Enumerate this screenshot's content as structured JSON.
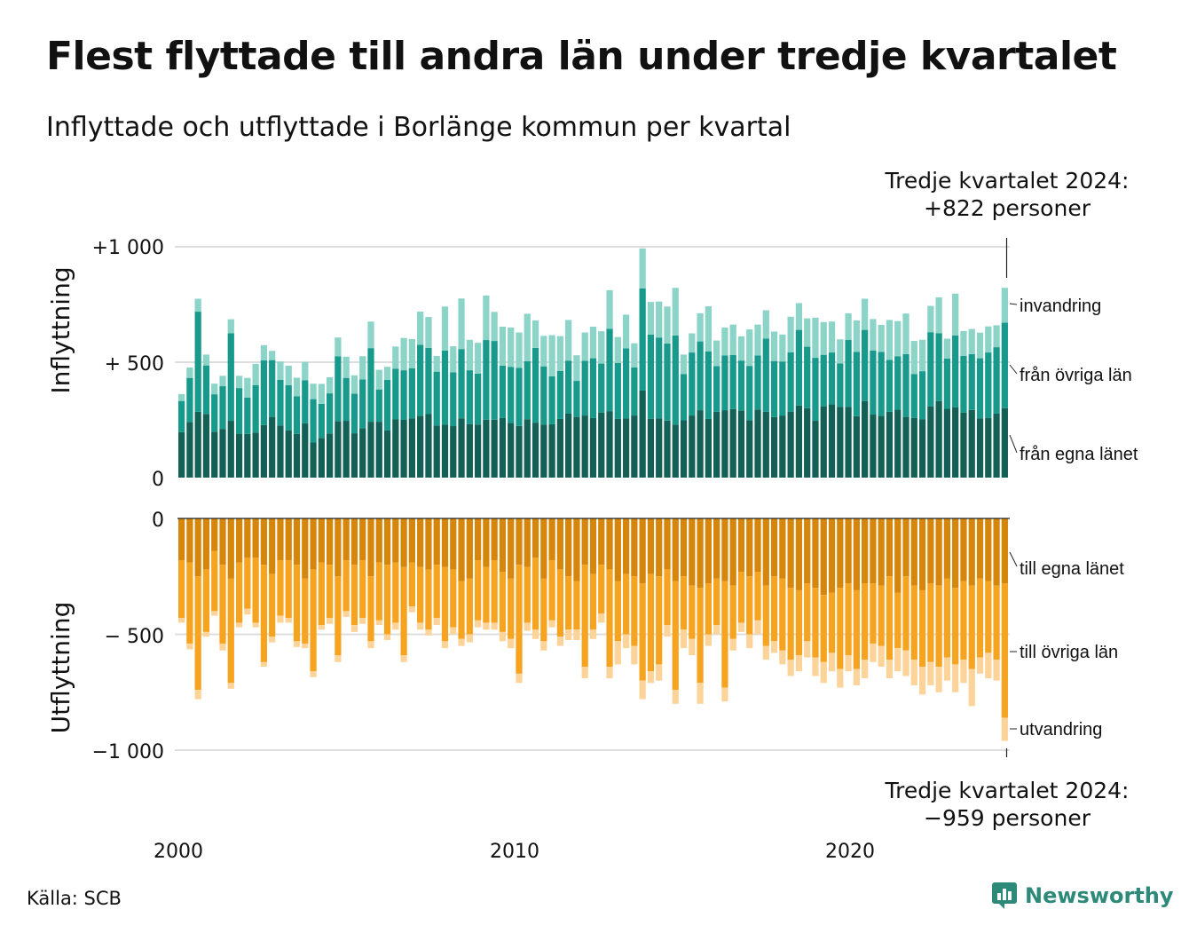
{
  "title": "Flest flyttade till andra län under tredje kvartalet",
  "subtitle": "Inflyttade och utflyttade i Borlänge kommun per kvartal",
  "source": "Källa: SCB",
  "logo": {
    "name": "Newsworthy",
    "icon": "newsworthy-chart-bubble-icon"
  },
  "colors": {
    "in": [
      "#136156",
      "#179a8c",
      "#8cd3c8"
    ],
    "out": [
      "#d5860b",
      "#f6a31f",
      "#fcd49a"
    ],
    "grid": "#dddddd"
  },
  "chart_data": {
    "type": "bar",
    "stacked": true,
    "x_ticks": [
      "2000",
      "2010",
      "2020"
    ],
    "top_panel": {
      "ylabel": "Inflyttning",
      "yticks": [
        "+1 000",
        "+ 500",
        "0"
      ],
      "ylim": [
        0,
        1000
      ],
      "annotation_line1": "Tredje kvartalet 2024:",
      "annotation_line2": "+822 personer",
      "legend": [
        "från egna länet",
        "från övriga län",
        "invandring"
      ],
      "series": [
        {
          "name": "från egna länet",
          "values": [
            197,
            241,
            285,
            276,
            199,
            211,
            246,
            190,
            189,
            195,
            228,
            263,
            226,
            204,
            189,
            235,
            152,
            172,
            191,
            245,
            246,
            192,
            214,
            242,
            242,
            204,
            252,
            250,
            257,
            268,
            275,
            226,
            229,
            223,
            257,
            232,
            230,
            251,
            251,
            259,
            237,
            224,
            253,
            238,
            230,
            231,
            254,
            277,
            263,
            269,
            258,
            282,
            288,
            255,
            256,
            269,
            377,
            255,
            257,
            247,
            230,
            248,
            269,
            292,
            254,
            285,
            292,
            297,
            290,
            249,
            295,
            285,
            262,
            269,
            286,
            312,
            301,
            246,
            309,
            318,
            306,
            306,
            266,
            332,
            273,
            268,
            285,
            294,
            263,
            258,
            252,
            309,
            331,
            298,
            304,
            282,
            293,
            257,
            259,
            277,
            301
          ]
        },
        {
          "name": "från övriga län",
          "values": [
            135,
            191,
            434,
            210,
            162,
            185,
            379,
            198,
            158,
            206,
            280,
            246,
            198,
            196,
            163,
            187,
            188,
            148,
            174,
            281,
            186,
            172,
            211,
            319,
            140,
            219,
            220,
            215,
            217,
            307,
            287,
            233,
            321,
            233,
            300,
            233,
            220,
            345,
            341,
            226,
            243,
            251,
            251,
            324,
            252,
            208,
            208,
            230,
            156,
            237,
            259,
            212,
            357,
            242,
            304,
            208,
            443,
            365,
            350,
            334,
            386,
            201,
            273,
            298,
            293,
            198,
            237,
            234,
            217,
            235,
            234,
            317,
            243,
            234,
            257,
            328,
            266,
            273,
            223,
            224,
            189,
            291,
            279,
            308,
            278,
            277,
            225,
            232,
            272,
            191,
            209,
            321,
            295,
            218,
            312,
            245,
            242,
            260,
            283,
            288,
            370
          ]
        },
        {
          "name": "invandring",
          "values": [
            30,
            45,
            56,
            47,
            46,
            45,
            61,
            53,
            85,
            92,
            66,
            40,
            79,
            85,
            81,
            79,
            67,
            86,
            70,
            81,
            92,
            79,
            101,
            115,
            85,
            57,
            96,
            140,
            126,
            144,
            134,
            68,
            191,
            113,
            219,
            132,
            134,
            193,
            126,
            169,
            170,
            154,
            206,
            119,
            132,
            178,
            151,
            176,
            111,
            123,
            137,
            140,
            167,
            112,
            146,
            105,
            173,
            141,
            156,
            160,
            206,
            84,
            83,
            122,
            195,
            111,
            121,
            132,
            105,
            158,
            134,
            123,
            128,
            117,
            154,
            116,
            123,
            174,
            142,
            134,
            104,
            115,
            136,
            135,
            136,
            117,
            173,
            152,
            176,
            143,
            136,
            114,
            155,
            86,
            181,
            108,
            109,
            111,
            113,
            95,
            151
          ]
        }
      ]
    },
    "bottom_panel": {
      "ylabel": "Utflyttning",
      "yticks": [
        "0",
        "− 500",
        "−1 000"
      ],
      "ylim": [
        -1000,
        0
      ],
      "annotation_line1": "Tredje kvartalet 2024:",
      "annotation_line2": "−959 personer",
      "legend": [
        "till egna länet",
        "till övriga län",
        "utvandring"
      ],
      "series": [
        {
          "name": "till egna länet",
          "values": [
            -180,
            -190,
            -250,
            -220,
            -140,
            -200,
            -260,
            -190,
            -170,
            -170,
            -200,
            -240,
            -180,
            -180,
            -200,
            -260,
            -220,
            -190,
            -200,
            -250,
            -180,
            -200,
            -180,
            -250,
            -190,
            -200,
            -190,
            -210,
            -190,
            -210,
            -220,
            -200,
            -210,
            -220,
            -270,
            -260,
            -180,
            -210,
            -180,
            -230,
            -260,
            -200,
            -210,
            -170,
            -260,
            -180,
            -220,
            -250,
            -270,
            -200,
            -240,
            -200,
            -220,
            -270,
            -240,
            -250,
            -280,
            -240,
            -250,
            -220,
            -270,
            -250,
            -290,
            -300,
            -280,
            -260,
            -270,
            -290,
            -230,
            -250,
            -230,
            -290,
            -250,
            -260,
            -300,
            -310,
            -280,
            -300,
            -330,
            -320,
            -300,
            -280,
            -310,
            -280,
            -280,
            -290,
            -250,
            -320,
            -250,
            -290,
            -310,
            -280,
            -290,
            -260,
            -300,
            -270,
            -290,
            -260,
            -270,
            -290,
            -280
          ]
        },
        {
          "name": "till övriga län",
          "values": [
            -250,
            -350,
            -490,
            -270,
            -260,
            -340,
            -450,
            -260,
            -220,
            -280,
            -420,
            -270,
            -240,
            -250,
            -330,
            -280,
            -440,
            -270,
            -230,
            -340,
            -220,
            -260,
            -250,
            -280,
            -250,
            -300,
            -260,
            -380,
            -190,
            -240,
            -260,
            -230,
            -320,
            -250,
            -250,
            -240,
            -260,
            -240,
            -270,
            -260,
            -260,
            -470,
            -240,
            -310,
            -270,
            -260,
            -290,
            -230,
            -210,
            -440,
            -240,
            -210,
            -420,
            -260,
            -260,
            -300,
            -420,
            -420,
            -380,
            -240,
            -470,
            -230,
            -230,
            -410,
            -220,
            -200,
            -460,
            -230,
            -220,
            -250,
            -210,
            -260,
            -280,
            -310,
            -310,
            -280,
            -250,
            -300,
            -290,
            -260,
            -350,
            -310,
            -340,
            -330,
            -260,
            -260,
            -360,
            -240,
            -320,
            -320,
            -330,
            -340,
            -350,
            -340,
            -330,
            -340,
            -360,
            -340,
            -310,
            -320,
            -580
          ]
        },
        {
          "name": "utvandring",
          "values": [
            -20,
            -25,
            -40,
            -20,
            -20,
            -30,
            -25,
            -20,
            -25,
            -20,
            -20,
            -25,
            -30,
            -20,
            -25,
            -20,
            -25,
            -20,
            -25,
            -30,
            -25,
            -30,
            -25,
            -30,
            -20,
            -25,
            -30,
            -30,
            -25,
            -30,
            -25,
            -30,
            -30,
            -30,
            -30,
            -35,
            -30,
            -30,
            -30,
            -40,
            -40,
            -40,
            -35,
            -40,
            -40,
            -30,
            -40,
            -45,
            -45,
            -50,
            -40,
            -40,
            -50,
            -100,
            -60,
            -80,
            -80,
            -50,
            -70,
            -50,
            -60,
            -80,
            -70,
            -90,
            -50,
            -40,
            -60,
            -50,
            -40,
            -60,
            -60,
            -60,
            -50,
            -60,
            -70,
            -70,
            -70,
            -80,
            -90,
            -80,
            -80,
            -70,
            -70,
            -80,
            -80,
            -90,
            -80,
            -100,
            -110,
            -110,
            -120,
            -100,
            -110,
            -100,
            -120,
            -100,
            -160,
            -70,
            -110,
            -90,
            -100
          ]
        }
      ]
    }
  }
}
